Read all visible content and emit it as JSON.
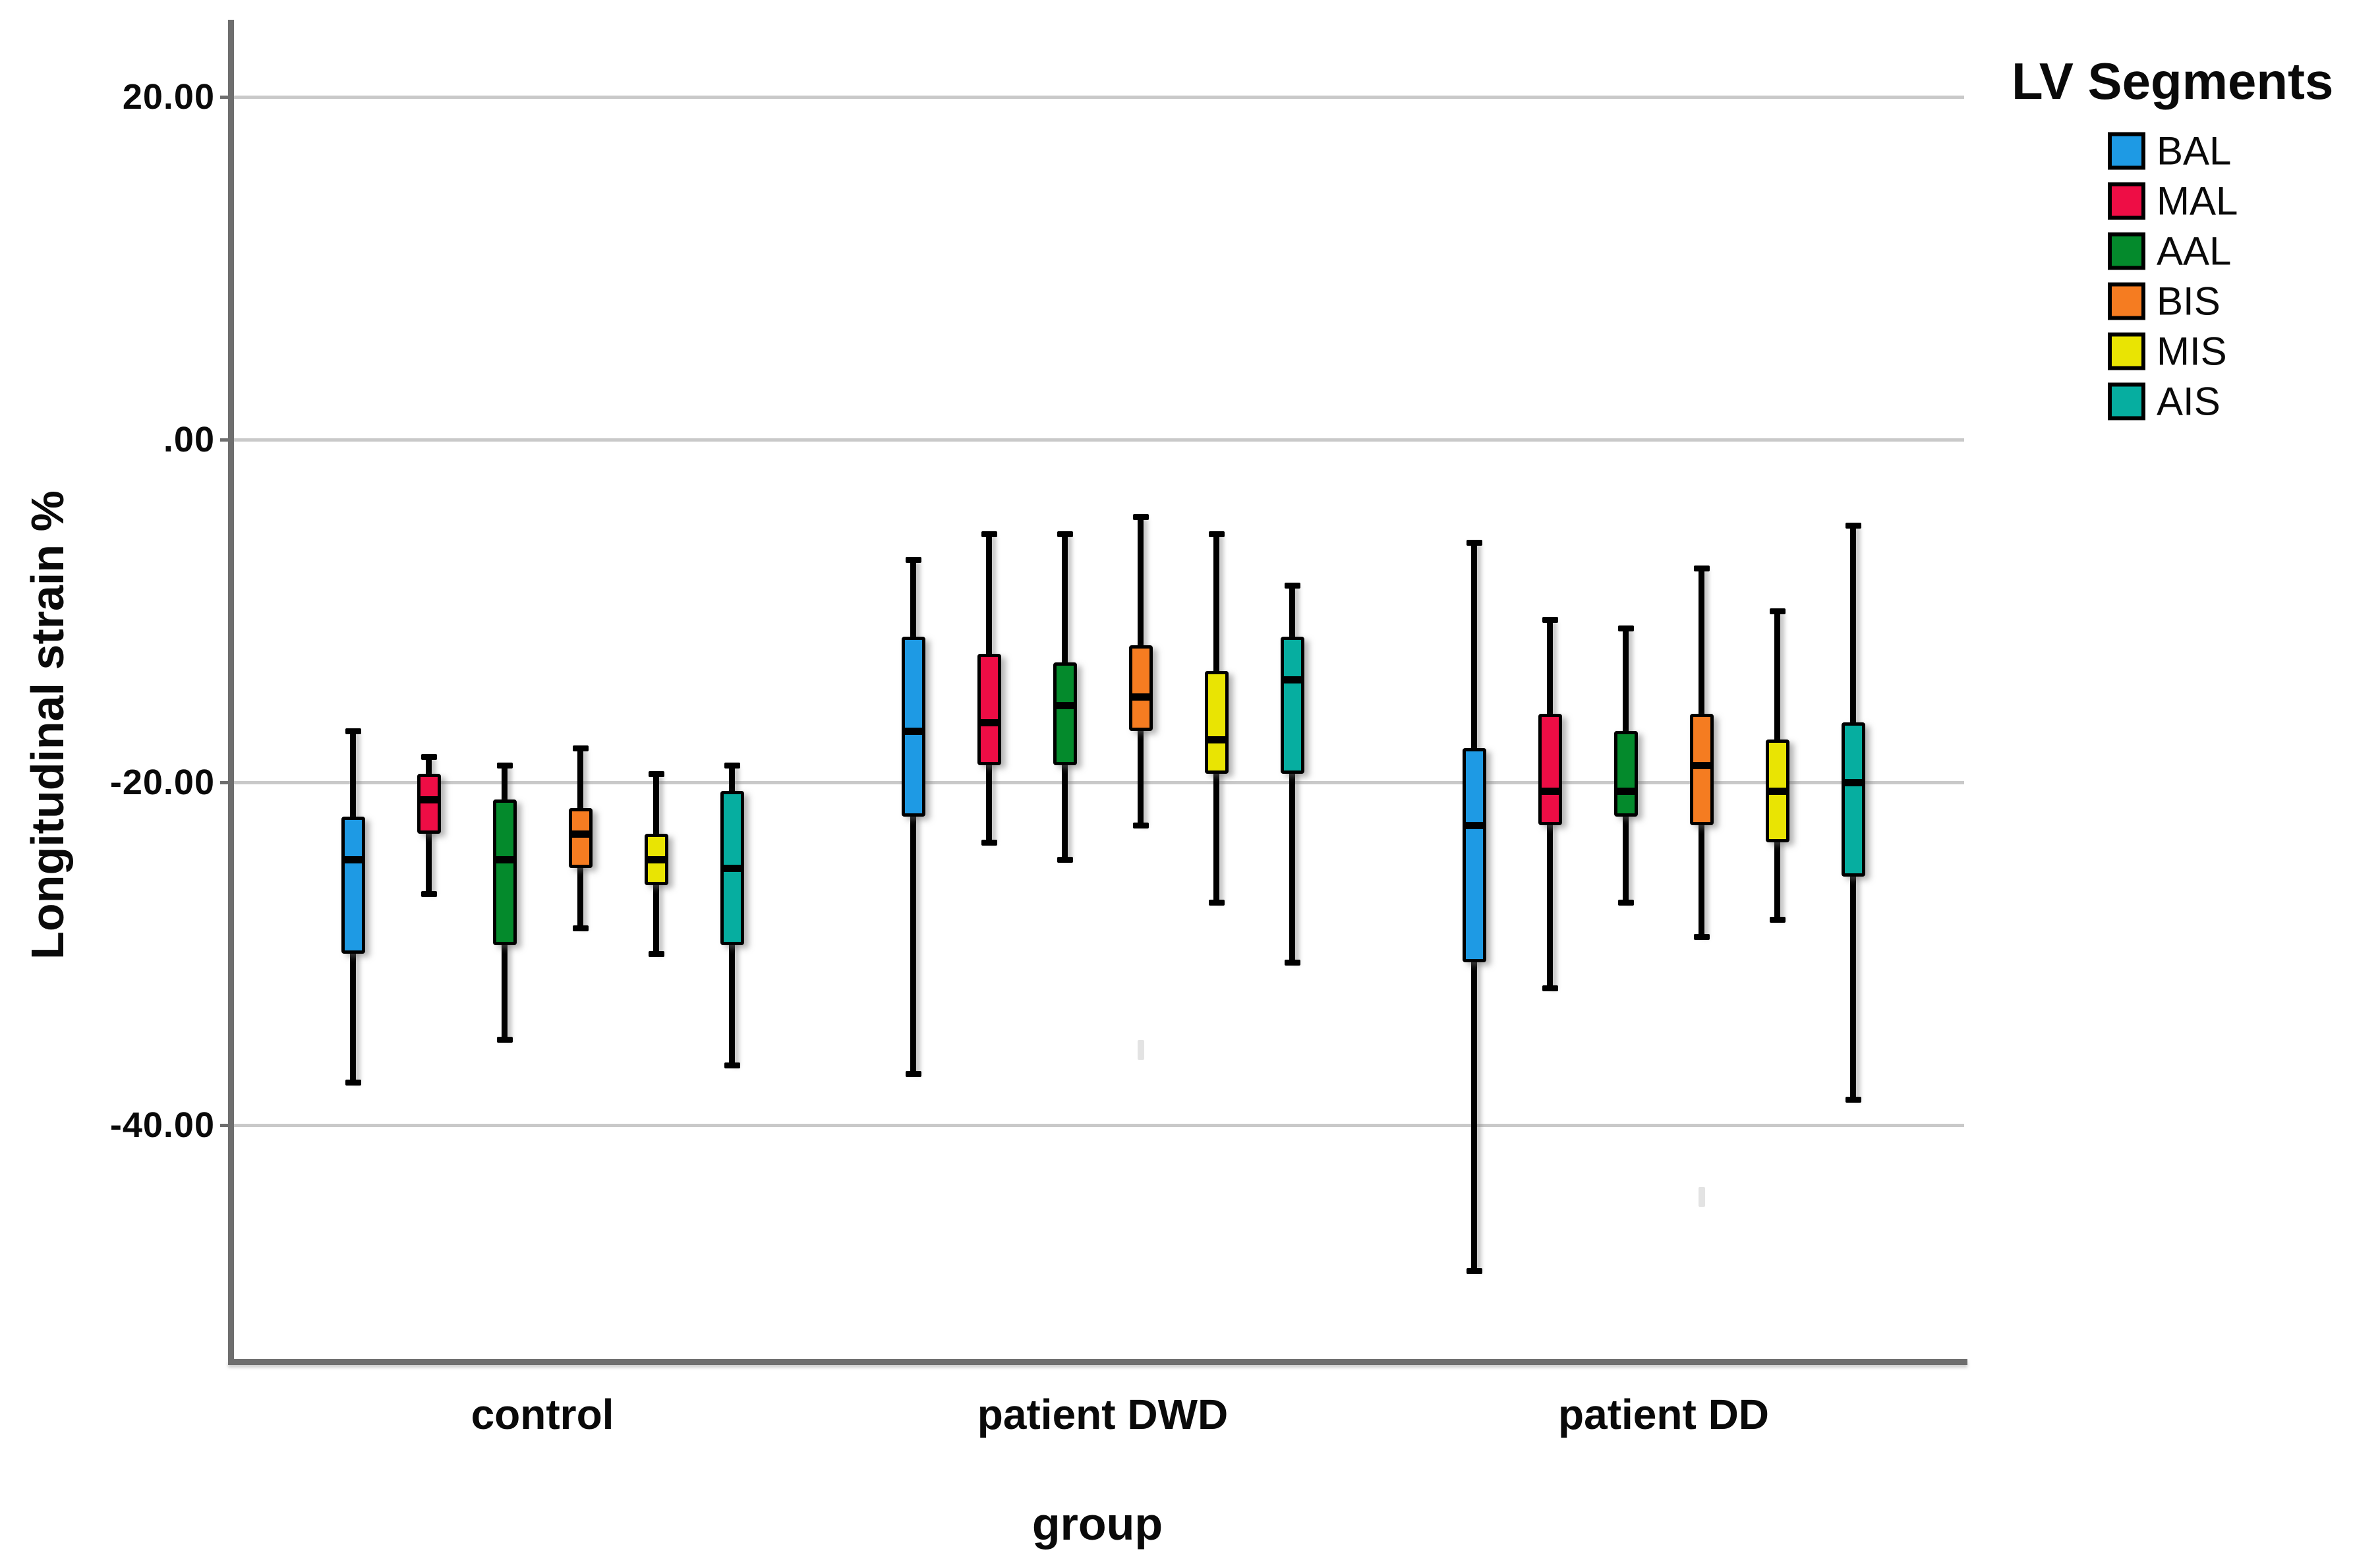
{
  "chart_data": {
    "type": "boxplot",
    "title": "",
    "ylabel": "Longitudinal strain %",
    "xlabel": "group",
    "ylim": [
      -54,
      24.5
    ],
    "grid": "horizontal-gridlines",
    "gridline_color": "#c9c9c9",
    "axis_color": "#6e6e6e",
    "yticks": [
      {
        "label": "20.00",
        "value": 20
      },
      {
        "label": ".00",
        "value": 0
      },
      {
        "label": "-20.00",
        "value": -20
      },
      {
        "label": "-40.00",
        "value": -40
      }
    ],
    "legend": {
      "title": "LV Segments",
      "position": "top-right",
      "entries": [
        {
          "label": "BAL",
          "color": "#1E9AE4"
        },
        {
          "label": "MAL",
          "color": "#EE0D45"
        },
        {
          "label": "AAL",
          "color": "#048A2C"
        },
        {
          "label": "BIS",
          "color": "#F57C21"
        },
        {
          "label": "MIS",
          "color": "#E9E403"
        },
        {
          "label": "AIS",
          "color": "#06AEA0"
        }
      ]
    },
    "groups": [
      {
        "label": "control",
        "boxes": [
          {
            "segment": "BAL",
            "whisker_low": -37.5,
            "q1": -30.0,
            "median": -24.5,
            "q3": -22.0,
            "whisker_high": -17.0
          },
          {
            "segment": "MAL",
            "whisker_low": -26.5,
            "q1": -23.0,
            "median": -21.0,
            "q3": -19.5,
            "whisker_high": -18.5
          },
          {
            "segment": "AAL",
            "whisker_low": -35.0,
            "q1": -29.5,
            "median": -24.5,
            "q3": -21.0,
            "whisker_high": -19.0
          },
          {
            "segment": "BIS",
            "whisker_low": -28.5,
            "q1": -25.0,
            "median": -23.0,
            "q3": -21.5,
            "whisker_high": -18.0
          },
          {
            "segment": "MIS",
            "whisker_low": -30.0,
            "q1": -26.0,
            "median": -24.5,
            "q3": -23.0,
            "whisker_high": -19.5
          },
          {
            "segment": "AIS",
            "whisker_low": -36.5,
            "q1": -29.5,
            "median": -25.0,
            "q3": -20.5,
            "whisker_high": -19.0
          }
        ]
      },
      {
        "label": "patient DWD",
        "boxes": [
          {
            "segment": "BAL",
            "whisker_low": -37.0,
            "q1": -22.0,
            "median": -17.0,
            "q3": -11.5,
            "whisker_high": -7.0
          },
          {
            "segment": "MAL",
            "whisker_low": -23.5,
            "q1": -19.0,
            "median": -16.5,
            "q3": -12.5,
            "whisker_high": -5.5
          },
          {
            "segment": "AAL",
            "whisker_low": -24.5,
            "q1": -19.0,
            "median": -15.5,
            "q3": -13.0,
            "whisker_high": -5.5
          },
          {
            "segment": "BIS",
            "whisker_low": -22.5,
            "q1": -17.0,
            "median": -15.0,
            "q3": -12.0,
            "whisker_high": -4.5
          },
          {
            "segment": "MIS",
            "whisker_low": -27.0,
            "q1": -19.5,
            "median": -17.5,
            "q3": -13.5,
            "whisker_high": -5.5
          },
          {
            "segment": "AIS",
            "whisker_low": -30.5,
            "q1": -19.5,
            "median": -14.0,
            "q3": -11.5,
            "whisker_high": -8.5
          }
        ]
      },
      {
        "label": "patient DD",
        "boxes": [
          {
            "segment": "BAL",
            "whisker_low": -48.5,
            "q1": -30.5,
            "median": -22.5,
            "q3": -18.0,
            "whisker_high": -6.0
          },
          {
            "segment": "MAL",
            "whisker_low": -32.0,
            "q1": -22.5,
            "median": -20.5,
            "q3": -16.0,
            "whisker_high": -10.5
          },
          {
            "segment": "AAL",
            "whisker_low": -27.0,
            "q1": -22.0,
            "median": -20.5,
            "q3": -17.0,
            "whisker_high": -11.0
          },
          {
            "segment": "BIS",
            "whisker_low": -29.0,
            "q1": -22.5,
            "median": -19.0,
            "q3": -16.0,
            "whisker_high": -7.5
          },
          {
            "segment": "MIS",
            "whisker_low": -28.0,
            "q1": -23.5,
            "median": -20.5,
            "q3": -17.5,
            "whisker_high": -10.0
          },
          {
            "segment": "AIS",
            "whisker_low": -38.5,
            "q1": -25.5,
            "median": -20.0,
            "q3": -16.5,
            "whisker_high": -5.0
          }
        ]
      }
    ],
    "faint_marks": [
      {
        "group": "patient DWD",
        "segment": "BIS",
        "value": -35.6
      },
      {
        "group": "patient DD",
        "segment": "BIS",
        "value": -44.2
      }
    ]
  }
}
